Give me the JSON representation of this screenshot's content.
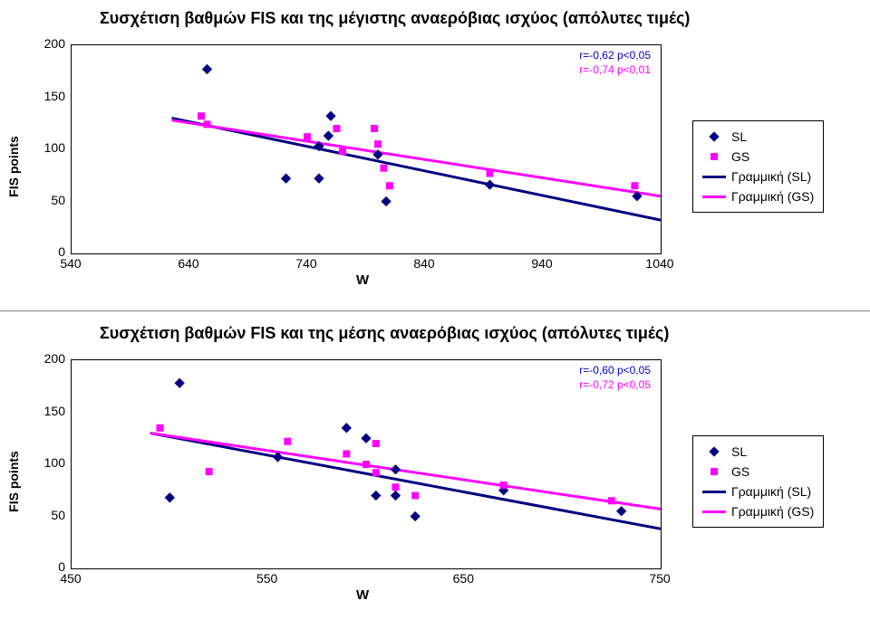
{
  "chart1": {
    "type": "scatter",
    "title": "Συσχέτιση βαθμών FIS και της μέγιστης αναερόβιας ισχύος (απόλυτες τιμές)",
    "ylabel": "FIS points",
    "xlabel": "W",
    "xlim": [
      540,
      1040
    ],
    "xtick_step": 100,
    "ylim": [
      0,
      200
    ],
    "ytick_step": 50,
    "plot_bg": "#ffffff",
    "border_color": "#000000",
    "stats": [
      {
        "text": "r=-0,62  p<0,05",
        "color": "#0000cd"
      },
      {
        "text": "r=-0,74  p<0,01",
        "color": "#ff00ff"
      }
    ],
    "legend": [
      {
        "label": "SL",
        "kind": "diamond",
        "color": "#000080"
      },
      {
        "label": "GS",
        "kind": "square",
        "color": "#ff00ff"
      },
      {
        "label": "Γραμμική (SL)",
        "kind": "line",
        "color": "#000080"
      },
      {
        "label": "Γραμμική (GS)",
        "kind": "line",
        "color": "#ff00ff"
      }
    ],
    "series_SL_color": "#000080",
    "series_GS_color": "#ff00ff",
    "marker_size": 8,
    "line_width": 3,
    "SL_points": [
      {
        "x": 655,
        "y": 177
      },
      {
        "x": 750,
        "y": 103
      },
      {
        "x": 760,
        "y": 132
      },
      {
        "x": 758,
        "y": 113
      },
      {
        "x": 722,
        "y": 72
      },
      {
        "x": 750,
        "y": 72
      },
      {
        "x": 800,
        "y": 95
      },
      {
        "x": 807,
        "y": 50
      },
      {
        "x": 895,
        "y": 66
      },
      {
        "x": 1020,
        "y": 55
      }
    ],
    "GS_points": [
      {
        "x": 650,
        "y": 132
      },
      {
        "x": 655,
        "y": 124
      },
      {
        "x": 740,
        "y": 112
      },
      {
        "x": 765,
        "y": 120
      },
      {
        "x": 770,
        "y": 98
      },
      {
        "x": 797,
        "y": 120
      },
      {
        "x": 800,
        "y": 105
      },
      {
        "x": 805,
        "y": 82
      },
      {
        "x": 810,
        "y": 65
      },
      {
        "x": 895,
        "y": 77
      },
      {
        "x": 1018,
        "y": 65
      }
    ],
    "SL_line": {
      "x1": 625,
      "y1": 130,
      "x2": 1040,
      "y2": 32
    },
    "GS_line": {
      "x1": 625,
      "y1": 128,
      "x2": 1040,
      "y2": 55
    }
  },
  "chart2": {
    "type": "scatter",
    "title": "Συσχέτιση βαθμών FIS και της μέσης αναερόβιας ισχύος (απόλυτες τιμές)",
    "ylabel": "FIS points",
    "xlabel": "W",
    "xlim": [
      450,
      750
    ],
    "xtick_step": 100,
    "ylim": [
      0,
      200
    ],
    "ytick_step": 50,
    "plot_bg": "#ffffff",
    "border_color": "#000000",
    "stats": [
      {
        "text": "r=-0,60  p<0,05",
        "color": "#0000cd"
      },
      {
        "text": "r=-0,72  p<0,05",
        "color": "#ff00ff"
      }
    ],
    "legend": [
      {
        "label": "SL",
        "kind": "diamond",
        "color": "#000080"
      },
      {
        "label": "GS",
        "kind": "square",
        "color": "#ff00ff"
      },
      {
        "label": "Γραμμική (SL)",
        "kind": "line",
        "color": "#000080"
      },
      {
        "label": "Γραμμική (GS)",
        "kind": "line",
        "color": "#ff00ff"
      }
    ],
    "series_SL_color": "#000080",
    "series_GS_color": "#ff00ff",
    "marker_size": 8,
    "line_width": 3,
    "SL_points": [
      {
        "x": 505,
        "y": 178
      },
      {
        "x": 555,
        "y": 107
      },
      {
        "x": 500,
        "y": 68
      },
      {
        "x": 590,
        "y": 135
      },
      {
        "x": 600,
        "y": 125
      },
      {
        "x": 605,
        "y": 70
      },
      {
        "x": 615,
        "y": 70
      },
      {
        "x": 615,
        "y": 95
      },
      {
        "x": 625,
        "y": 50
      },
      {
        "x": 670,
        "y": 75
      },
      {
        "x": 730,
        "y": 55
      }
    ],
    "GS_points": [
      {
        "x": 495,
        "y": 135
      },
      {
        "x": 520,
        "y": 93
      },
      {
        "x": 560,
        "y": 122
      },
      {
        "x": 590,
        "y": 110
      },
      {
        "x": 605,
        "y": 120
      },
      {
        "x": 600,
        "y": 100
      },
      {
        "x": 605,
        "y": 92
      },
      {
        "x": 615,
        "y": 78
      },
      {
        "x": 625,
        "y": 70
      },
      {
        "x": 670,
        "y": 80
      },
      {
        "x": 725,
        "y": 65
      }
    ],
    "SL_line": {
      "x1": 490,
      "y1": 130,
      "x2": 750,
      "y2": 38
    },
    "GS_line": {
      "x1": 490,
      "y1": 130,
      "x2": 750,
      "y2": 57
    }
  }
}
